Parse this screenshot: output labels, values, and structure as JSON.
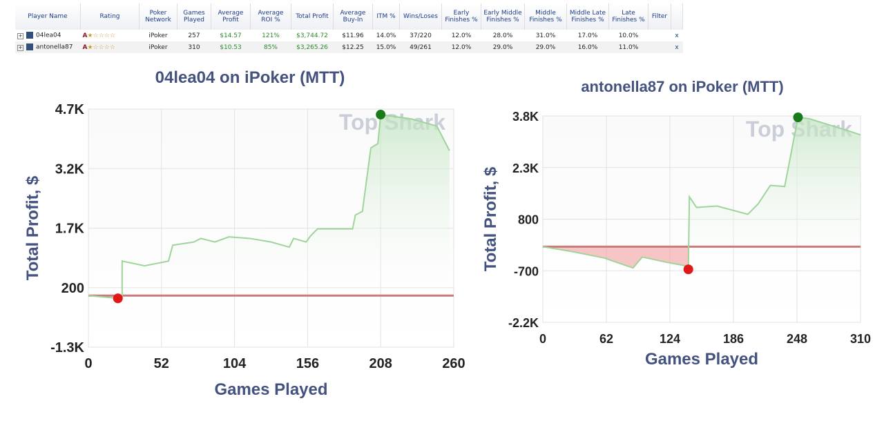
{
  "table": {
    "headers": [
      "Player Name",
      "Rating",
      "Poker Network",
      "Games Played",
      "Average Profit",
      "Average ROI %",
      "Total Profit",
      "Average Buy-In",
      "ITM %",
      "Wins/Loses",
      "Early Finishes %",
      "Early Middle Finishes %",
      "Middle Finishes %",
      "Middle Late Finishes %",
      "Late Finishes %",
      "Filter",
      ""
    ],
    "rows": [
      [
        "04lea04",
        "A",
        "iPoker",
        "257",
        "$14.57",
        "121%",
        "$3,744.72",
        "$11.96",
        "14.0%",
        "37/220",
        "12.0%",
        "28.0%",
        "31.0%",
        "17.0%",
        "10.0%",
        "",
        "x"
      ],
      [
        "antonella87",
        "A",
        "iPoker",
        "310",
        "$10.53",
        "85%",
        "$3,265.26",
        "$12.25",
        "15.0%",
        "49/261",
        "12.0%",
        "29.0%",
        "29.0%",
        "16.0%",
        "11.0%",
        "",
        "x"
      ]
    ],
    "green_columns": [
      4,
      5,
      6
    ],
    "value_color": "#2a8a2a"
  },
  "chart_data": [
    {
      "type": "line",
      "title": "04lea04 on iPoker (MTT)",
      "watermark": "Top Shark",
      "x_label": "Games Played",
      "y_label": "Total Profit, $",
      "x": [
        0,
        21,
        24,
        24,
        40,
        57,
        60,
        75,
        80,
        90,
        100,
        115,
        130,
        143,
        146,
        155,
        158,
        163,
        188,
        190,
        195,
        201,
        206,
        208,
        230,
        248,
        257
      ],
      "values": [
        0,
        -70,
        -50,
        870,
        750,
        870,
        1270,
        1350,
        1440,
        1350,
        1480,
        1440,
        1350,
        1220,
        1440,
        1350,
        1500,
        1680,
        1680,
        2030,
        2120,
        3720,
        3830,
        4560,
        4450,
        4270,
        3650
      ],
      "color": "#9fd49a",
      "zero_color": "#c97a7a",
      "xlim": [
        0,
        260
      ],
      "xticks": [
        0,
        52,
        104,
        156,
        208,
        260
      ],
      "ylim": [
        -1300,
        4700
      ],
      "yticks": [
        {
          "value": -1300,
          "label": "-1.3K"
        },
        200,
        {
          "value": 1700,
          "label": "1.7K"
        },
        {
          "value": 3200,
          "label": "3.2K"
        },
        {
          "value": 4700,
          "label": "4.7K"
        }
      ],
      "grid": true
    },
    {
      "type": "line",
      "title": "antonella87 on iPoker (MTT)",
      "watermark": "Top Shark",
      "x_label": "Games Played",
      "y_label": "Total Profit, $",
      "x": [
        0,
        30,
        60,
        88,
        97,
        120,
        140,
        142,
        143,
        150,
        170,
        200,
        210,
        222,
        236,
        249,
        260,
        300,
        310
      ],
      "values": [
        0,
        -150,
        -330,
        -620,
        -300,
        -450,
        -560,
        -660,
        1450,
        1140,
        1180,
        940,
        1240,
        1780,
        1750,
        3760,
        3720,
        3350,
        3250
      ],
      "color": "#9fd49a",
      "zero_color": "#c97a7a",
      "xlim": [
        0,
        310
      ],
      "xticks": [
        0,
        62,
        124,
        186,
        248,
        310
      ],
      "ylim": [
        -2200,
        3800
      ],
      "yticks": [
        {
          "value": -2200,
          "label": "-2.2K"
        },
        {
          "value": -700,
          "label": "-700"
        },
        800,
        {
          "value": 2300,
          "label": "2.3K"
        },
        {
          "value": 3800,
          "label": "3.8K"
        }
      ],
      "grid": true
    }
  ]
}
